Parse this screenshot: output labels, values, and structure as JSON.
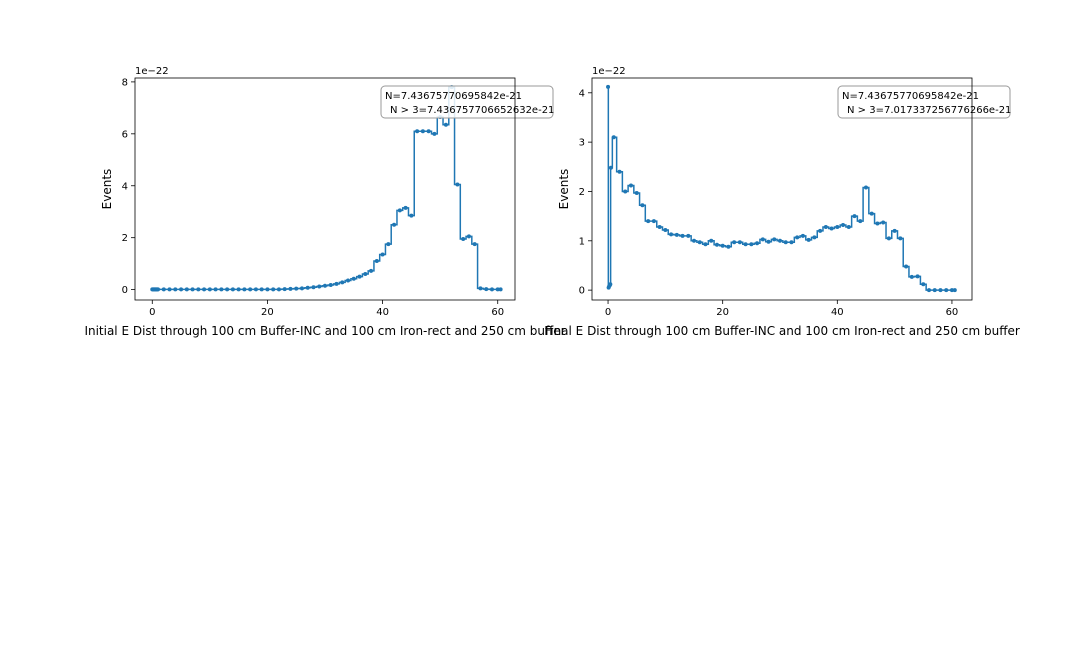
{
  "chart_data": [
    {
      "type": "line",
      "drawstyle": "steps-mid",
      "marker": "dot",
      "color": "#1f77b4",
      "title": "",
      "xlabel": "Initial E Dist through 100 cm Buffer-INC and 100 cm Iron-rect and 250 cm buffer",
      "ylabel": "Events",
      "y_scale_label": "1e−22",
      "xlim": [
        -3,
        63
      ],
      "ylim": [
        -0.4,
        8.15
      ],
      "xticks": [
        0,
        20,
        40,
        60
      ],
      "xtick_labels": [
        "0",
        "20",
        "40",
        "60"
      ],
      "yticks": [
        0,
        2,
        4,
        6,
        8
      ],
      "ytick_labels": [
        "0",
        "2",
        "4",
        "6",
        "8"
      ],
      "grid": false,
      "annotation_box": {
        "placement": "upper-right",
        "lines": [
          "N=7.43675770695842e-21",
          "N > 3=7.436757706652632e-21"
        ]
      },
      "series": [
        {
          "x": [
            0,
            0.1,
            0.2,
            0.3,
            0.4,
            0.5,
            0.6,
            0.7,
            0.8,
            0.9,
            1,
            2,
            3,
            4,
            5,
            6,
            7,
            8,
            9,
            10,
            11,
            12,
            13,
            14,
            15,
            16,
            17,
            18,
            19,
            20,
            21,
            22,
            23,
            24,
            25,
            26,
            27,
            28,
            29,
            30,
            31,
            32,
            33,
            34,
            35,
            36,
            37,
            38,
            39,
            40,
            41,
            42,
            43,
            44,
            45,
            46,
            47,
            48,
            49,
            50,
            51,
            52,
            53,
            54,
            55,
            56,
            57,
            58,
            59,
            60,
            60.5
          ],
          "y": [
            0.01,
            0.01,
            0.01,
            0.01,
            0.01,
            0.01,
            0.01,
            0.01,
            0.01,
            0.01,
            0.01,
            0.01,
            0.01,
            0.01,
            0.01,
            0.01,
            0.01,
            0.01,
            0.01,
            0.01,
            0.01,
            0.01,
            0.01,
            0.01,
            0.01,
            0.01,
            0.01,
            0.01,
            0.01,
            0.01,
            0.01,
            0.01,
            0.02,
            0.03,
            0.04,
            0.05,
            0.07,
            0.09,
            0.12,
            0.15,
            0.18,
            0.22,
            0.28,
            0.35,
            0.42,
            0.5,
            0.6,
            0.72,
            1.1,
            1.35,
            1.75,
            2.5,
            3.05,
            3.15,
            2.85,
            6.1,
            6.1,
            6.1,
            6.0,
            6.65,
            6.35,
            7.8,
            4.05,
            1.95,
            2.05,
            1.75,
            0.05,
            0.02,
            0.01,
            0.01,
            0.01
          ]
        }
      ]
    },
    {
      "type": "line",
      "drawstyle": "steps-mid",
      "marker": "dot",
      "color": "#1f77b4",
      "title": "",
      "xlabel": "Final E Dist through 100 cm Buffer-INC and 100 cm Iron-rect and 250 cm buffer",
      "ylabel": "Events",
      "y_scale_label": "1e−22",
      "xlim": [
        -2.8,
        63.5
      ],
      "ylim": [
        -0.2,
        4.3
      ],
      "xticks": [
        0,
        20,
        40,
        60
      ],
      "xtick_labels": [
        "0",
        "20",
        "40",
        "60"
      ],
      "yticks": [
        0,
        1,
        2,
        3,
        4
      ],
      "ytick_labels": [
        "0",
        "1",
        "2",
        "3",
        "4"
      ],
      "grid": false,
      "annotation_box": {
        "placement": "upper-right",
        "lines": [
          "N=7.43675770695842e-21",
          "N > 3=7.017337256776266e-21"
        ]
      },
      "series": [
        {
          "x": [
            0,
            0.1,
            0.2,
            0.3,
            0.4,
            0.5,
            1,
            2,
            3,
            4,
            5,
            6,
            7,
            8,
            9,
            10,
            11,
            12,
            13,
            14,
            15,
            16,
            17,
            18,
            19,
            20,
            21,
            22,
            23,
            24,
            25,
            26,
            27,
            28,
            29,
            30,
            31,
            32,
            33,
            34,
            35,
            36,
            37,
            38,
            39,
            40,
            41,
            42,
            43,
            44,
            45,
            46,
            47,
            48,
            49,
            50,
            51,
            52,
            53,
            54,
            55,
            56,
            57,
            58,
            59,
            60,
            60.5
          ],
          "y": [
            4.12,
            0.05,
            0.08,
            0.1,
            0.12,
            2.48,
            3.1,
            2.4,
            2.0,
            2.12,
            1.97,
            1.72,
            1.4,
            1.4,
            1.28,
            1.22,
            1.13,
            1.12,
            1.1,
            1.1,
            1.0,
            0.97,
            0.93,
            1.0,
            0.92,
            0.9,
            0.88,
            0.97,
            0.97,
            0.93,
            0.93,
            0.95,
            1.03,
            0.98,
            1.03,
            1.0,
            0.97,
            0.97,
            1.07,
            1.1,
            1.02,
            1.07,
            1.2,
            1.28,
            1.25,
            1.28,
            1.32,
            1.28,
            1.5,
            1.4,
            2.08,
            1.55,
            1.35,
            1.37,
            1.05,
            1.2,
            1.05,
            0.48,
            0.27,
            0.28,
            0.12,
            0.0,
            0.0,
            0.0,
            0.0,
            0.0,
            0.0
          ]
        }
      ]
    }
  ]
}
